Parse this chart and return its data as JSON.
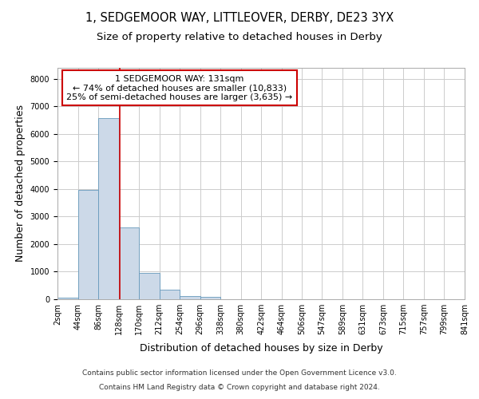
{
  "title_line1": "1, SEDGEMOOR WAY, LITTLEOVER, DERBY, DE23 3YX",
  "title_line2": "Size of property relative to detached houses in Derby",
  "xlabel": "Distribution of detached houses by size in Derby",
  "ylabel": "Number of detached properties",
  "footnote_line1": "Contains HM Land Registry data © Crown copyright and database right 2024.",
  "footnote_line2": "Contains public sector information licensed under the Open Government Licence v3.0.",
  "bar_edges": [
    2,
    44,
    86,
    128,
    170,
    212,
    254,
    296,
    338,
    380,
    422,
    464,
    506,
    547,
    589,
    631,
    673,
    715,
    757,
    799,
    841
  ],
  "bar_heights": [
    60,
    3980,
    6580,
    2620,
    960,
    340,
    130,
    100,
    0,
    0,
    0,
    0,
    0,
    0,
    0,
    0,
    0,
    0,
    0,
    0
  ],
  "bar_color": "#ccd9e8",
  "bar_edge_color": "#6699bb",
  "grid_color": "#cccccc",
  "property_sqm": 131,
  "property_label": "1 SEDGEMOOR WAY: 131sqm",
  "annotation_line1": "← 74% of detached houses are smaller (10,833)",
  "annotation_line2": "25% of semi-detached houses are larger (3,635) →",
  "annotation_box_color": "#ffffff",
  "annotation_box_edge_color": "#cc0000",
  "vline_color": "#cc0000",
  "ylim": [
    0,
    8400
  ],
  "yticks": [
    0,
    1000,
    2000,
    3000,
    4000,
    5000,
    6000,
    7000,
    8000
  ],
  "tick_labels": [
    "2sqm",
    "44sqm",
    "86sqm",
    "128sqm",
    "170sqm",
    "212sqm",
    "254sqm",
    "296sqm",
    "338sqm",
    "380sqm",
    "422sqm",
    "464sqm",
    "506sqm",
    "547sqm",
    "589sqm",
    "631sqm",
    "673sqm",
    "715sqm",
    "757sqm",
    "799sqm",
    "841sqm"
  ],
  "title_fontsize": 10.5,
  "subtitle_fontsize": 9.5,
  "axis_label_fontsize": 9,
  "tick_fontsize": 7,
  "annotation_fontsize": 8
}
